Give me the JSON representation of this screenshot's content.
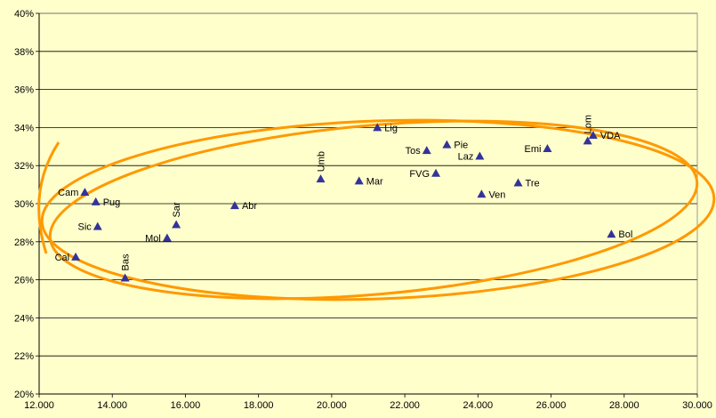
{
  "chart_data": {
    "type": "scatter",
    "xlim": [
      12000,
      30000
    ],
    "ylim": [
      0.2,
      0.4
    ],
    "x_ticks": [
      12000,
      14000,
      16000,
      18000,
      20000,
      22000,
      24000,
      26000,
      28000,
      30000
    ],
    "x_tick_labels": [
      "12.000",
      "14.000",
      "16.000",
      "18.000",
      "20.000",
      "22.000",
      "24.000",
      "26.000",
      "28.000",
      "30.000"
    ],
    "y_ticks": [
      0.2,
      0.22,
      0.24,
      0.26,
      0.28,
      0.3,
      0.32,
      0.34,
      0.36,
      0.38,
      0.4
    ],
    "y_tick_labels": [
      "20%",
      "22%",
      "24%",
      "26%",
      "28%",
      "30%",
      "32%",
      "34%",
      "36%",
      "38%",
      "40%"
    ],
    "grid": "horizontal",
    "marker_color": "#333399",
    "annotation_color": "#FF9900",
    "background_color": "#FFFFCC",
    "points": [
      {
        "label": "Cal",
        "x": 13000,
        "y": 0.272,
        "pos": "left"
      },
      {
        "label": "Cam",
        "x": 13250,
        "y": 0.306,
        "pos": "left"
      },
      {
        "label": "Pug",
        "x": 13550,
        "y": 0.301,
        "pos": "right"
      },
      {
        "label": "Sic",
        "x": 13600,
        "y": 0.288,
        "pos": "left"
      },
      {
        "label": "Bas",
        "x": 14350,
        "y": 0.261,
        "pos": "vertical"
      },
      {
        "label": "Mol",
        "x": 15500,
        "y": 0.282,
        "pos": "left"
      },
      {
        "label": "Sar",
        "x": 15750,
        "y": 0.289,
        "pos": "vertical"
      },
      {
        "label": "Abr",
        "x": 17350,
        "y": 0.299,
        "pos": "right"
      },
      {
        "label": "Umb",
        "x": 19700,
        "y": 0.313,
        "pos": "vertical"
      },
      {
        "label": "Mar",
        "x": 20750,
        "y": 0.312,
        "pos": "right"
      },
      {
        "label": "Lig",
        "x": 21250,
        "y": 0.34,
        "pos": "right"
      },
      {
        "label": "Tos",
        "x": 22600,
        "y": 0.328,
        "pos": "left"
      },
      {
        "label": "FVG",
        "x": 22850,
        "y": 0.316,
        "pos": "left"
      },
      {
        "label": "Pie",
        "x": 23150,
        "y": 0.331,
        "pos": "right"
      },
      {
        "label": "Laz",
        "x": 24050,
        "y": 0.325,
        "pos": "left"
      },
      {
        "label": "Ven",
        "x": 24100,
        "y": 0.305,
        "pos": "right"
      },
      {
        "label": "Tre",
        "x": 25100,
        "y": 0.311,
        "pos": "right"
      },
      {
        "label": "Emi",
        "x": 25900,
        "y": 0.329,
        "pos": "left"
      },
      {
        "label": "Lom",
        "x": 27000,
        "y": 0.333,
        "pos": "vertical"
      },
      {
        "label": "VDA",
        "x": 27150,
        "y": 0.336,
        "pos": "right"
      },
      {
        "label": "Bol",
        "x": 27650,
        "y": 0.284,
        "pos": "right"
      }
    ]
  }
}
